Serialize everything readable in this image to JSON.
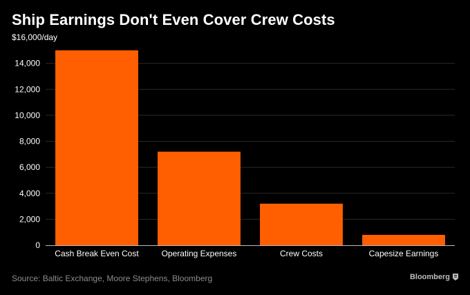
{
  "title": "Ship Earnings Don't Even Cover Crew Costs",
  "source": "Source: Baltic Exchange, Moore Stephens, Bloomberg",
  "brand": "Bloomberg",
  "colors": {
    "background": "#000000",
    "bar": "#ff5f00",
    "grid": "#2a2a2a",
    "text": "#ffffff"
  },
  "chart_data": {
    "type": "bar",
    "title": "Ship Earnings Don't Even Cover Crew Costs",
    "xlabel": "",
    "ylabel": "",
    "y_unit": "$16,000/day",
    "categories": [
      "Cash Break Even Cost",
      "Operating Expenses",
      "Crew Costs",
      "Capesize Earnings"
    ],
    "values": [
      15000,
      7200,
      3200,
      800
    ],
    "ylim": [
      0,
      16000
    ],
    "y_ticks": [
      0,
      2000,
      4000,
      6000,
      8000,
      10000,
      12000,
      14000
    ],
    "y_tick_labels": [
      "0",
      "2,000",
      "4,000",
      "6,000",
      "8,000",
      "10,000",
      "12,000",
      "14,000"
    ],
    "grid": true,
    "legend": "none"
  }
}
